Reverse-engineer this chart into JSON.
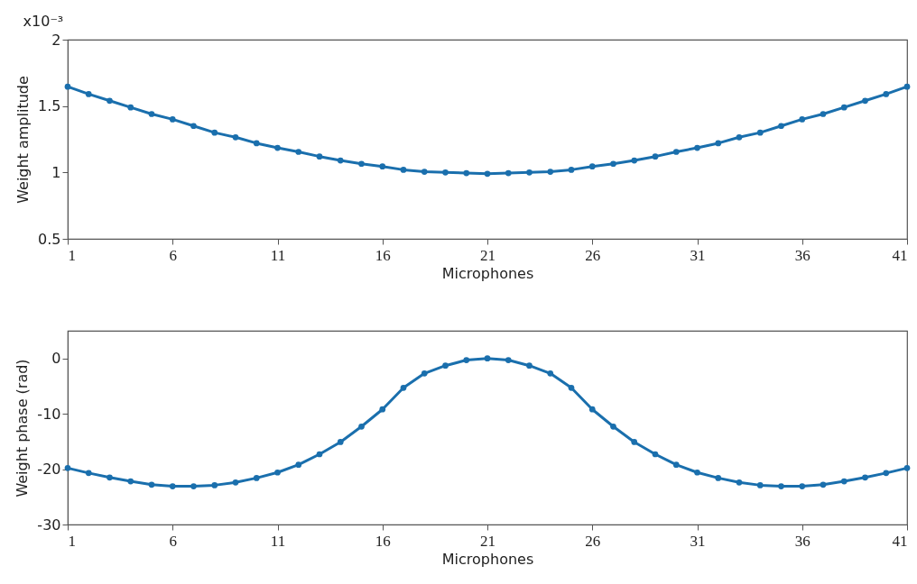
{
  "chart_data": [
    {
      "type": "line",
      "xlabel": "Microphones",
      "ylabel": "Weight amplitude",
      "annotations": [
        "x10⁻³"
      ],
      "color": "#1a6fad",
      "marker": "circle",
      "x": [
        1,
        2,
        3,
        4,
        5,
        6,
        7,
        8,
        9,
        10,
        11,
        12,
        13,
        14,
        15,
        16,
        17,
        18,
        19,
        20,
        21,
        22,
        23,
        24,
        25,
        26,
        27,
        28,
        29,
        30,
        31,
        32,
        33,
        34,
        35,
        36,
        37,
        38,
        39,
        40,
        41
      ],
      "values": [
        1.646,
        1.59,
        1.54,
        1.49,
        1.44,
        1.4,
        1.35,
        1.3,
        1.265,
        1.22,
        1.185,
        1.155,
        1.12,
        1.09,
        1.065,
        1.045,
        1.02,
        1.005,
        1.0,
        0.995,
        0.99,
        0.995,
        1.0,
        1.005,
        1.02,
        1.045,
        1.065,
        1.09,
        1.12,
        1.155,
        1.185,
        1.22,
        1.265,
        1.3,
        1.35,
        1.4,
        1.44,
        1.49,
        1.54,
        1.59,
        1.646
      ],
      "xlim": [
        1,
        41
      ],
      "xticks": [
        1,
        6,
        11,
        16,
        21,
        26,
        31,
        36,
        41
      ],
      "ylim": [
        0.5,
        2
      ],
      "yticks": [
        0.5,
        1,
        1.5,
        2
      ]
    },
    {
      "type": "line",
      "xlabel": "Microphones",
      "ylabel": "Weight phase (rad)",
      "color": "#1a6fad",
      "marker": "circle",
      "x": [
        1,
        2,
        3,
        4,
        5,
        6,
        7,
        8,
        9,
        10,
        11,
        12,
        13,
        14,
        15,
        16,
        17,
        18,
        19,
        20,
        21,
        22,
        23,
        24,
        25,
        26,
        27,
        28,
        29,
        30,
        31,
        32,
        33,
        34,
        35,
        36,
        37,
        38,
        39,
        40,
        41
      ],
      "values": [
        -19.8,
        -20.7,
        -21.5,
        -22.2,
        -22.8,
        -23.1,
        -23.1,
        -22.9,
        -22.4,
        -21.6,
        -20.6,
        -19.2,
        -17.3,
        -15.1,
        -12.3,
        -9.2,
        -5.3,
        -2.7,
        -1.3,
        -0.3,
        0,
        -0.3,
        -1.3,
        -2.7,
        -5.3,
        -9.2,
        -12.3,
        -15.1,
        -17.3,
        -19.2,
        -20.6,
        -21.6,
        -22.4,
        -22.9,
        -23.1,
        -23.1,
        -22.8,
        -22.2,
        -21.5,
        -20.7,
        -19.8
      ],
      "xlim": [
        1,
        41
      ],
      "xticks": [
        1,
        6,
        11,
        16,
        21,
        26,
        31,
        36,
        41
      ],
      "ylim": [
        -30,
        5
      ],
      "yticks": [
        -30,
        -20,
        -10,
        0
      ]
    }
  ]
}
